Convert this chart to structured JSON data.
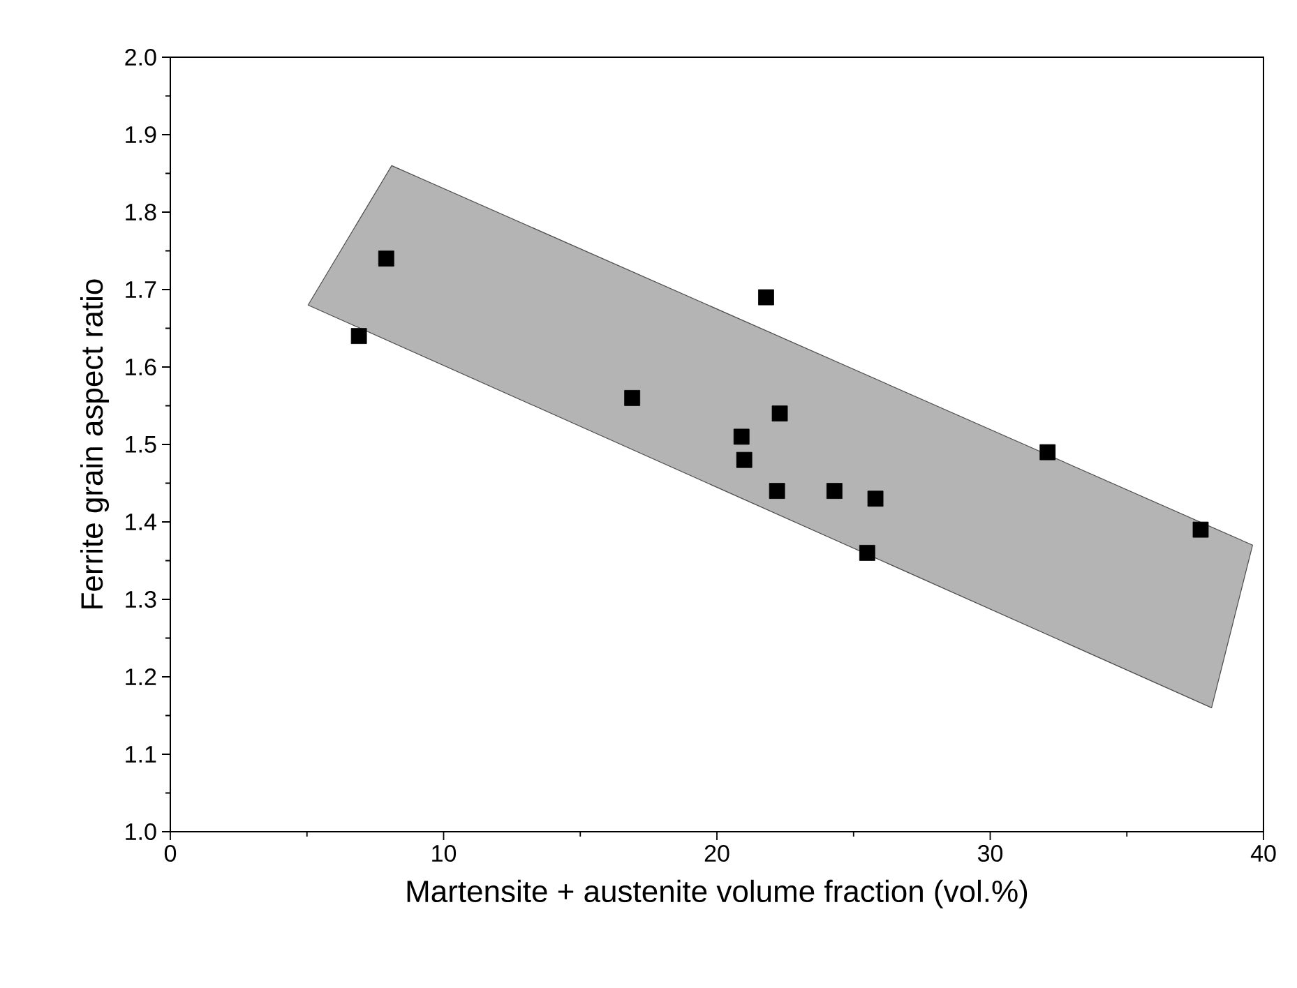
{
  "chart_data": {
    "type": "scatter",
    "xlabel": "Martensite + austenite volume fraction (vol.%)",
    "ylabel": "Ferrite grain aspect ratio",
    "series": [
      {
        "type": "area",
        "color": "#b4b4b4",
        "x": [
          5.04,
          8.1,
          39.6,
          38.1,
          5.04
        ],
        "values": [
          1.68,
          1.86,
          1.37,
          1.16,
          1.68
        ]
      },
      {
        "type": "scatter",
        "color": "#000000",
        "marker": "square",
        "x": [
          6.9,
          7.9,
          16.9,
          20.9,
          21.0,
          21.8,
          22.2,
          22.3,
          24.3,
          25.5,
          25.8,
          32.1,
          37.7
        ],
        "values": [
          1.64,
          1.74,
          1.56,
          1.51,
          1.48,
          1.69,
          1.44,
          1.54,
          1.44,
          1.36,
          1.43,
          1.49,
          1.39
        ]
      }
    ],
    "xlim": [
      0,
      40
    ],
    "xticks": [
      0,
      10,
      20,
      30,
      40
    ],
    "ylim": [
      1.0,
      2.0
    ],
    "yticks": [
      {
        "value": 1.0,
        "label": "1.0"
      },
      {
        "value": 1.1,
        "label": "1.1"
      },
      {
        "value": 1.2,
        "label": "1.2"
      },
      {
        "value": 1.3,
        "label": "1.3"
      },
      {
        "value": 1.4,
        "label": "1.4"
      },
      {
        "value": 1.5,
        "label": "1.5"
      },
      {
        "value": 1.6,
        "label": "1.6"
      },
      {
        "value": 1.7,
        "label": "1.7"
      },
      {
        "value": 1.8,
        "label": "1.8"
      },
      {
        "value": 1.9,
        "label": "1.9"
      },
      {
        "value": 2.0,
        "label": "2.0"
      }
    ],
    "grid": false
  }
}
